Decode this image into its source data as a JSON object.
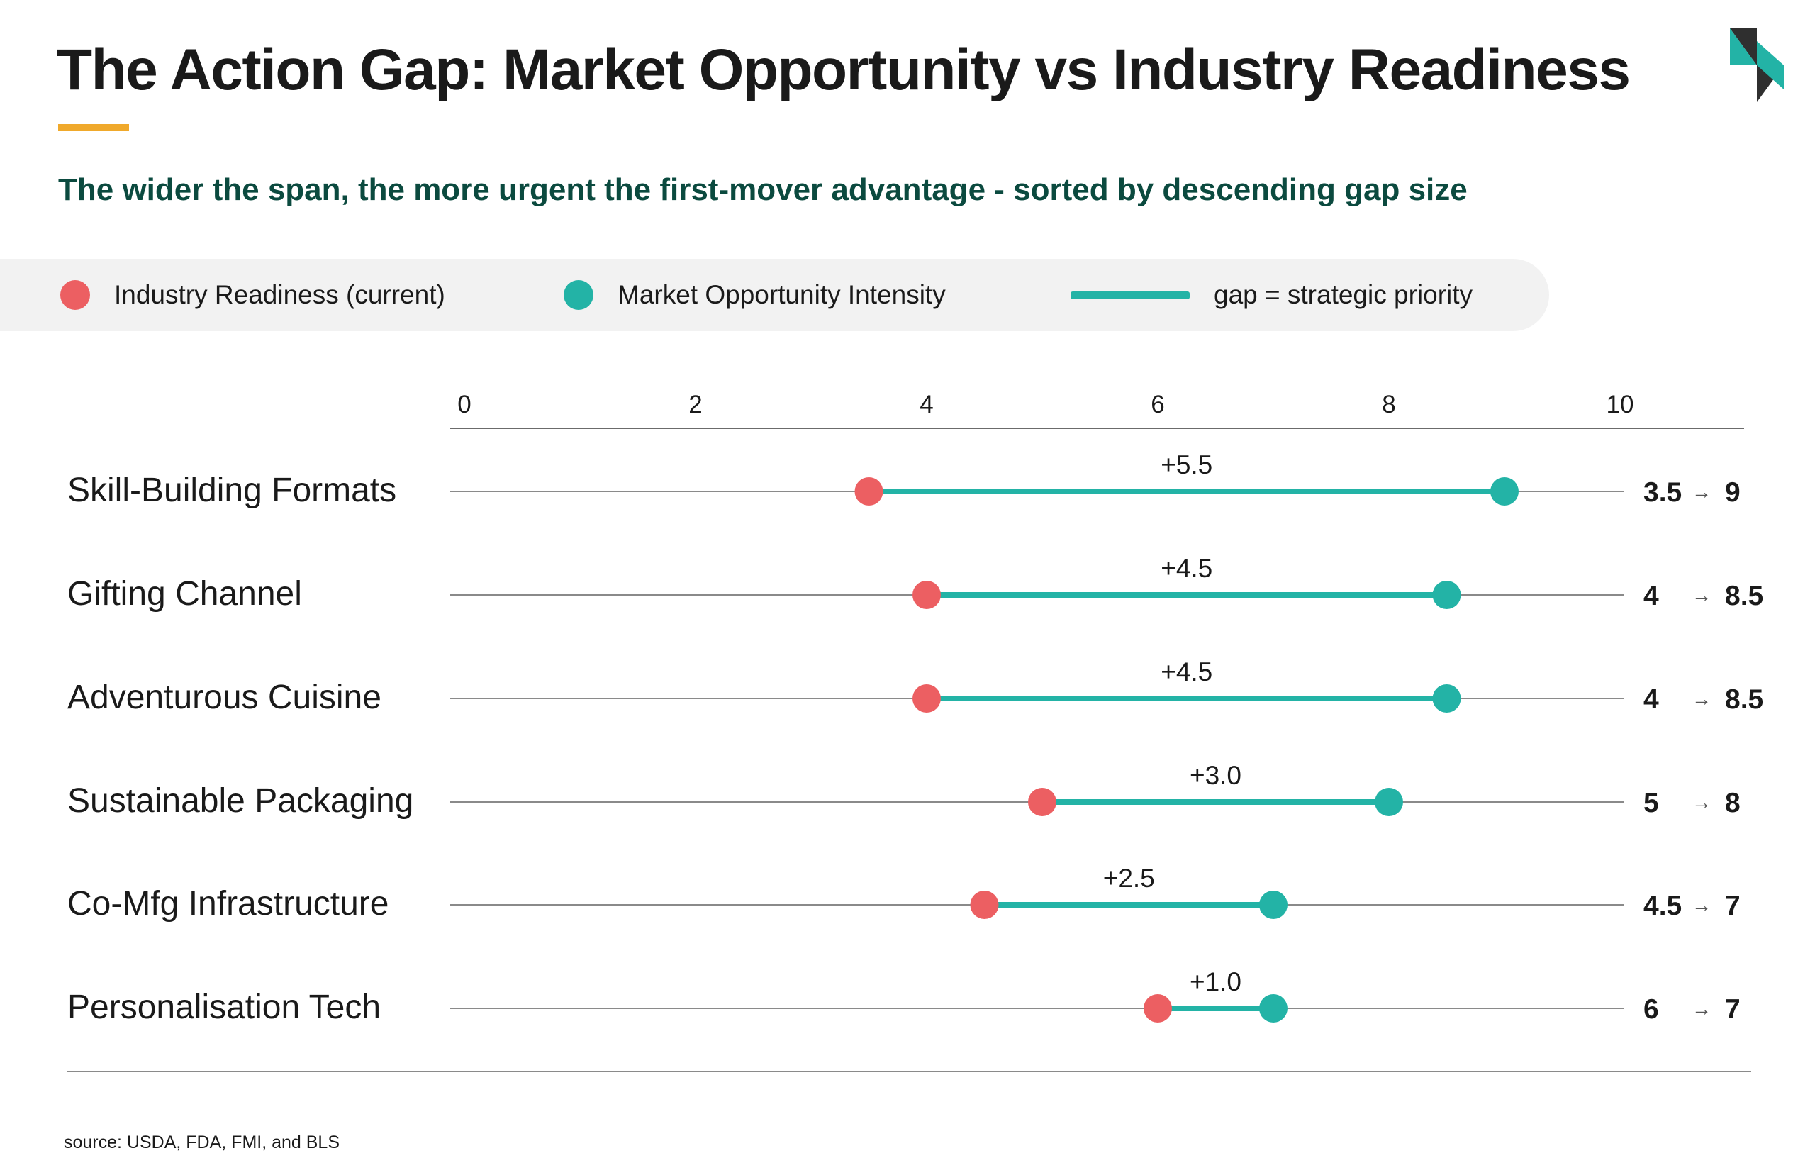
{
  "title": "The Action Gap: Market Opportunity vs Industry Readiness",
  "subtitle": "The wider the span, the more urgent the first-mover advantage - sorted by descending gap size",
  "legend": {
    "readiness": "Industry Readiness (current)",
    "opportunity": "Market Opportunity Intensity",
    "gap": "gap = strategic priority"
  },
  "colors": {
    "readiness": "#ec5f62",
    "opportunity": "#23b3a6",
    "subtitle": "#0b4a3f",
    "accent_bar": "#f0a92b",
    "logo_dark": "#2f2f2f"
  },
  "logo_icon": "geometric-brand-logo-icon",
  "arrow_icon": "→",
  "source": "source: USDA, FDA, FMI, and BLS",
  "chart_data": {
    "type": "dumbbell",
    "xlim": [
      0,
      10
    ],
    "xticks": [
      "0",
      "2",
      "4",
      "6",
      "8",
      "10"
    ],
    "categories": [
      "Skill-Building Formats",
      "Gifting Channel",
      "Adventurous Cuisine",
      "Sustainable Packaging",
      "Co-Mfg Infrastructure",
      "Personalisation Tech"
    ],
    "series": [
      {
        "name": "Industry Readiness (current)",
        "values": [
          3.5,
          4,
          4,
          5,
          4.5,
          6
        ]
      },
      {
        "name": "Market Opportunity Intensity",
        "values": [
          9,
          8.5,
          8.5,
          8,
          7,
          7
        ]
      }
    ],
    "gap_labels": [
      "+5.5",
      "+4.5",
      "+4.5",
      "+3.0",
      "+2.5",
      "+1.0"
    ],
    "readiness_labels": [
      "3.5",
      "4",
      "4",
      "5",
      "4.5",
      "6"
    ],
    "opportunity_labels": [
      "9",
      "8.5",
      "8.5",
      "8",
      "7",
      "7"
    ]
  }
}
